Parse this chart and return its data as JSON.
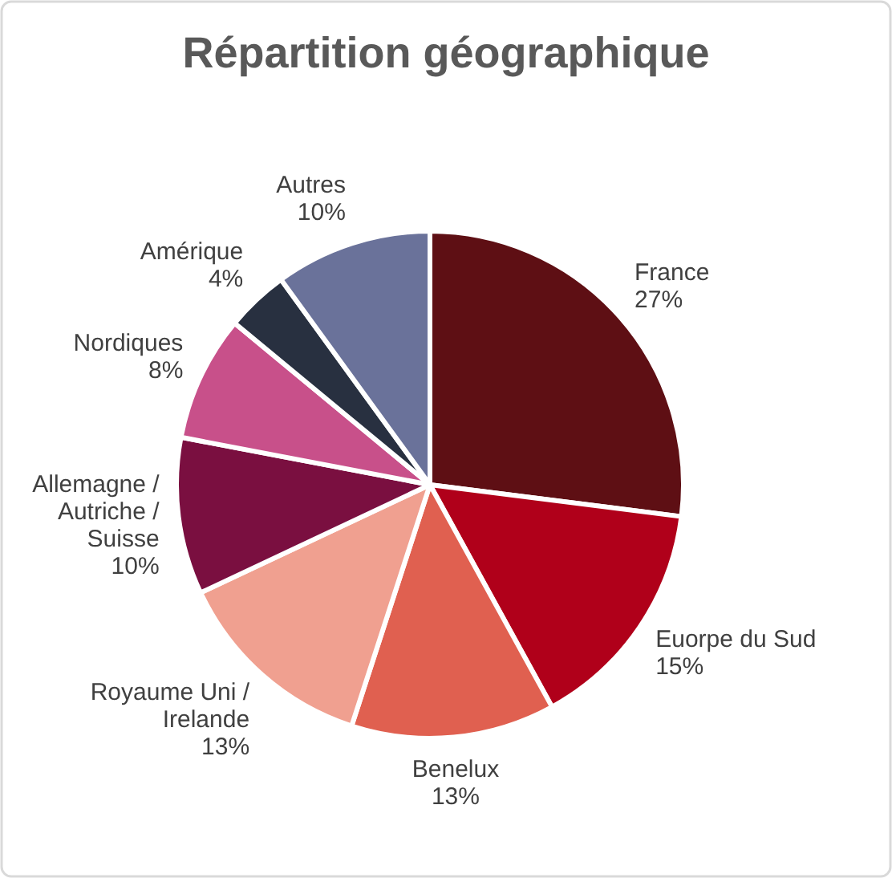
{
  "chart_data": {
    "type": "pie",
    "title": "Répartition géographique",
    "categories": [
      "France",
      "Euorpe du Sud",
      "Benelux",
      "Royaume Uni /\nIrelande",
      "Allemagne /\nAutriche /\nSuisse",
      "Nordiques",
      "Amérique",
      "Autres"
    ],
    "values": [
      27,
      15,
      13,
      13,
      10,
      8,
      4,
      10
    ],
    "colors": [
      "#5e0f14",
      "#b0001a",
      "#e06050",
      "#f0a090",
      "#7a0f40",
      "#c8508a",
      "#283040",
      "#6a729a"
    ],
    "value_labels": [
      "27%",
      "15%",
      "13%",
      "13%",
      "10%",
      "8%",
      "4%",
      "10%"
    ],
    "legend": false
  }
}
